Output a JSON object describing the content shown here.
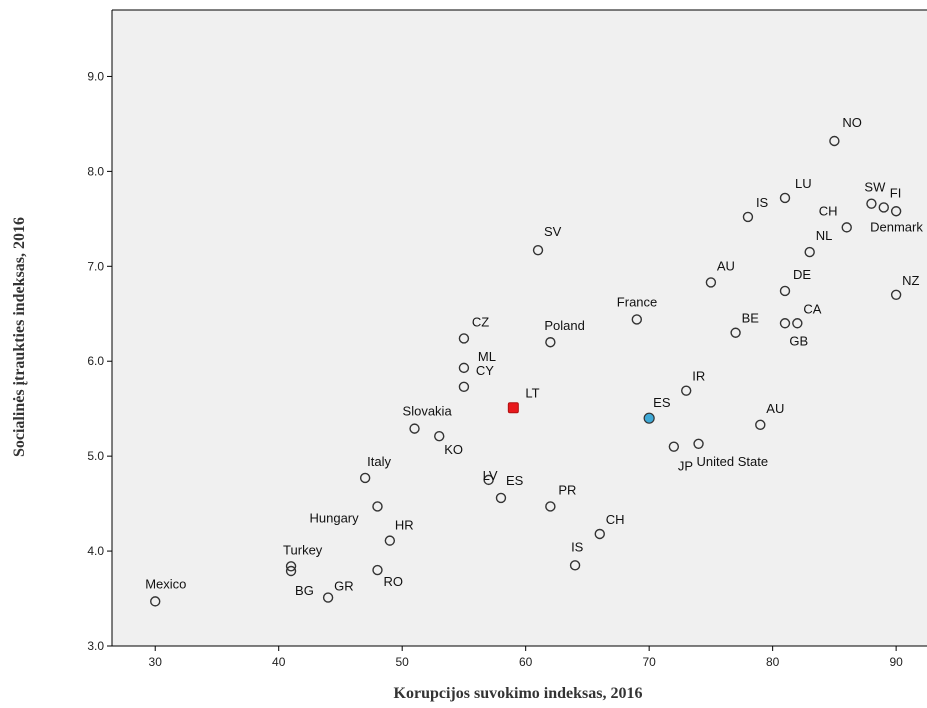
{
  "chart_data": {
    "type": "scatter",
    "xlabel": "Korupcijos suvokimo indeksas, 2016",
    "ylabel": "Socialinės įtraukties indeksas, 2016",
    "xlim": [
      26.5,
      92.5
    ],
    "ylim": [
      3.0,
      9.7
    ],
    "x_ticks": [
      "30",
      "40",
      "50",
      "60",
      "70",
      "80",
      "90"
    ],
    "x_tick_values": [
      30,
      40,
      50,
      60,
      70,
      80,
      90
    ],
    "y_ticks": [
      "3.0",
      "4.0",
      "5.0",
      "6.0",
      "7.0",
      "8.0",
      "9.0"
    ],
    "y_tick_values": [
      3,
      4,
      5,
      6,
      7,
      8,
      9
    ],
    "grid": false,
    "colors": {
      "plot_bg": "#f0f0f0",
      "marker_edge": "#333333",
      "highlight_lt": "#e8191c",
      "highlight_es": "#3fa9d6"
    },
    "points": [
      {
        "label": "NO",
        "x": 85,
        "y": 8.32
      },
      {
        "label": "LU",
        "x": 81,
        "y": 7.72
      },
      {
        "label": "SW",
        "x": 88,
        "y": 7.66
      },
      {
        "label": "FI",
        "x": 89,
        "y": 7.62
      },
      {
        "label": "",
        "x": 90,
        "y": 7.58
      },
      {
        "label": "IS",
        "x": 78,
        "y": 7.52
      },
      {
        "label": "CH",
        "x": 86,
        "y": 7.41
      },
      {
        "label": "Denmark",
        "x": 90,
        "y": 7.41,
        "hidden_marker": true
      },
      {
        "label": "NL",
        "x": 83,
        "y": 7.15
      },
      {
        "label": "SV",
        "x": 61,
        "y": 7.17
      },
      {
        "label": "AU",
        "x": 75,
        "y": 6.83
      },
      {
        "label": "DE",
        "x": 81,
        "y": 6.74
      },
      {
        "label": "NZ",
        "x": 90,
        "y": 6.7
      },
      {
        "label": "CA",
        "x": 82,
        "y": 6.4
      },
      {
        "label": "",
        "x": 81,
        "y": 6.4
      },
      {
        "label": "France",
        "x": 69,
        "y": 6.44
      },
      {
        "label": "BE",
        "x": 77,
        "y": 6.3
      },
      {
        "label": "GB",
        "x": 82,
        "y": 6.4,
        "hidden_marker": true
      },
      {
        "label": "CZ",
        "x": 55,
        "y": 6.24
      },
      {
        "label": "Poland",
        "x": 62,
        "y": 6.2
      },
      {
        "label": "ML",
        "x": 55,
        "y": 5.93
      },
      {
        "label": "CY",
        "x": 55,
        "y": 5.73
      },
      {
        "label": "IR",
        "x": 73,
        "y": 5.69
      },
      {
        "label": "LT",
        "x": 59,
        "y": 5.51,
        "highlight": "lt"
      },
      {
        "label": "ES",
        "x": 70,
        "y": 5.4,
        "highlight": "es"
      },
      {
        "label": "AU",
        "x": 79,
        "y": 5.33
      },
      {
        "label": "Slovakia",
        "x": 51,
        "y": 5.29
      },
      {
        "label": "KO",
        "x": 53,
        "y": 5.21
      },
      {
        "label": "LV",
        "x": 57,
        "y": 4.75
      },
      {
        "label": "United State",
        "x": 74,
        "y": 5.13
      },
      {
        "label": "JP",
        "x": 72,
        "y": 5.1
      },
      {
        "label": "Italy",
        "x": 47,
        "y": 4.77
      },
      {
        "label": "ES",
        "x": 58,
        "y": 4.56
      },
      {
        "label": "PR",
        "x": 62,
        "y": 4.47
      },
      {
        "label": "Hungary",
        "x": 48,
        "y": 4.47
      },
      {
        "label": "CH",
        "x": 66,
        "y": 4.18
      },
      {
        "label": "HR",
        "x": 49,
        "y": 4.11
      },
      {
        "label": "IS",
        "x": 64,
        "y": 3.85
      },
      {
        "label": "Turkey",
        "x": 41,
        "y": 3.84
      },
      {
        "label": "",
        "x": 41,
        "y": 3.79
      },
      {
        "label": "RO",
        "x": 48,
        "y": 3.8
      },
      {
        "label": "BG",
        "x": 41,
        "y": 3.79,
        "hidden_marker": true
      },
      {
        "label": "GR",
        "x": 44,
        "y": 3.51
      },
      {
        "label": "Mexico",
        "x": 30,
        "y": 3.47
      }
    ]
  }
}
